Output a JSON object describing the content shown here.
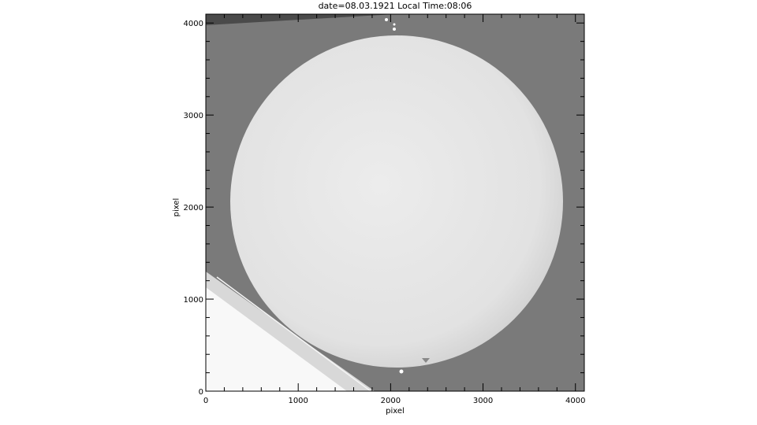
{
  "chart_data": {
    "type": "image",
    "title": "date=08.03.1921 Local Time:08:06",
    "xlabel": "pixel",
    "ylabel": "pixel",
    "xlim": [
      0,
      4096
    ],
    "ylim": [
      0,
      4096
    ],
    "xticks": [
      0,
      1000,
      2000,
      3000,
      4000
    ],
    "yticks": [
      0,
      1000,
      2000,
      3000,
      4000
    ],
    "colormap": "grayscale",
    "background_color": "#7a7a7a",
    "disk_color": "#e6e6e6"
  }
}
